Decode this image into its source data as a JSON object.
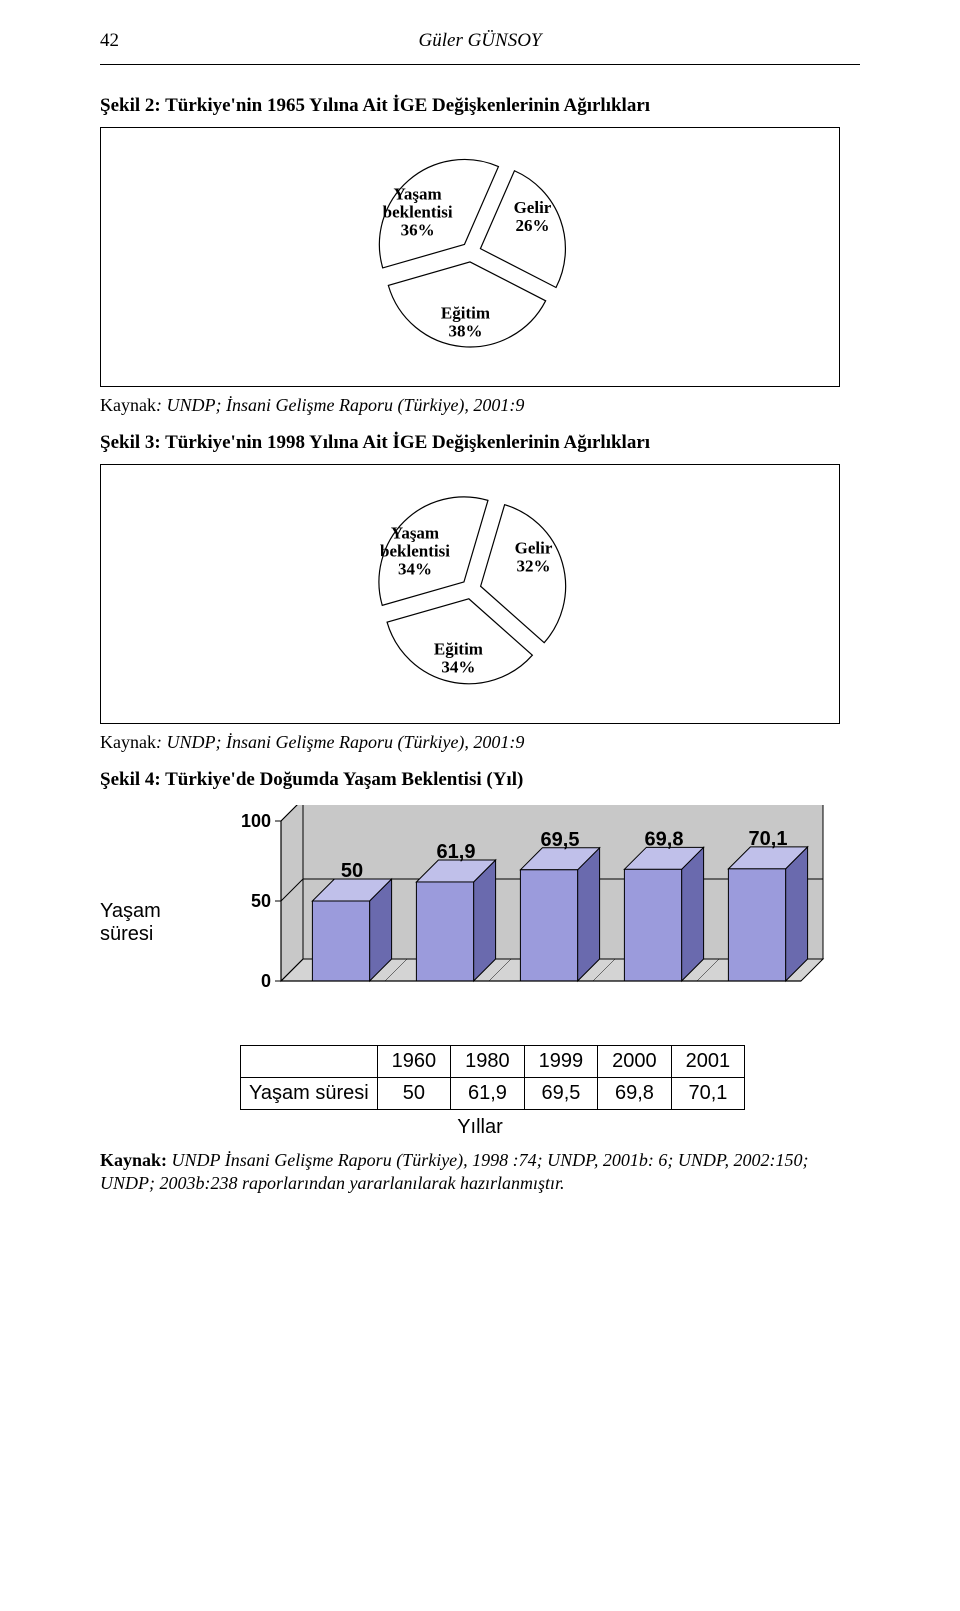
{
  "page_number": "42",
  "author": "Güler GÜNSOY",
  "figure2": {
    "title": "Şekil 2: Türkiye'nin 1965 Yılına Ait İGE Değişkenlerinin Ağırlıkları",
    "pie": {
      "slices": [
        {
          "label": "Yaşam",
          "sublabel": "beklentisi",
          "pct_text": "36%",
          "value": 36,
          "color": "#ffffff"
        },
        {
          "label": "Gelir",
          "sublabel": "",
          "pct_text": "26%",
          "value": 26,
          "color": "#ffffff"
        },
        {
          "label": "Eğitim",
          "sublabel": "",
          "pct_text": "38%",
          "value": 38,
          "color": "#ffffff"
        }
      ],
      "stroke": "#000000",
      "explode": 10,
      "radius": 85,
      "label_fontsize": 17
    },
    "source_label": "Kaynak",
    "source_text": ": UNDP;  İnsani Gelişme Raporu (Türkiye), 2001:9"
  },
  "figure3": {
    "title": "Şekil 3: Türkiye'nin 1998 Yılına Ait İGE Değişkenlerinin Ağırlıkları",
    "pie": {
      "slices": [
        {
          "label": "Yaşam",
          "sublabel": "beklentisi",
          "pct_text": "34%",
          "value": 34,
          "color": "#ffffff"
        },
        {
          "label": "Gelir",
          "sublabel": "",
          "pct_text": "32%",
          "value": 32,
          "color": "#ffffff"
        },
        {
          "label": "Eğitim",
          "sublabel": "",
          "pct_text": "34%",
          "value": 34,
          "color": "#ffffff"
        }
      ],
      "stroke": "#000000",
      "explode": 10,
      "radius": 85,
      "label_fontsize": 17
    },
    "source_label": "Kaynak",
    "source_text": ": UNDP;  İnsani Gelişme Raporu (Türkiye), 2001:9"
  },
  "figure4": {
    "title": "Şekil 4: Türkiye'de Doğumda Yaşam Beklentisi (Yıl)",
    "bar": {
      "type": "bar",
      "ylabel_line1": "Yaşam",
      "ylabel_line2": "süresi",
      "xlabel": "Yıllar",
      "row_header": "Yaşam süresi",
      "categories": [
        "1960",
        "1980",
        "1999",
        "2000",
        "2001"
      ],
      "values": [
        50,
        61.9,
        69.5,
        69.8,
        70.1
      ],
      "value_labels": [
        "50",
        "61,9",
        "69,5",
        "69,8",
        "70,1"
      ],
      "cat_row_labels": [
        "1960",
        "1980",
        "1999",
        "2000",
        "2001"
      ],
      "val_row_labels": [
        "50",
        "61,9",
        "69,5",
        "69,8",
        "70,1"
      ],
      "ylim": [
        0,
        100
      ],
      "yticks": [
        0,
        50,
        100
      ],
      "ytick_labels": [
        "0",
        "50",
        "100"
      ],
      "bar_fill": "#9b9bdc",
      "bar_stroke": "#000000",
      "bar_side_fill": "#6a6aae",
      "bar_top_fill": "#c0c0ea",
      "floor_fill": "#d4d4d4",
      "back_wall_fill": "#c8c8c8",
      "frame_stroke": "#000000",
      "grid_color": "#000000",
      "label_fontsize": 18,
      "axis_fontsize": 20,
      "bar_width_ratio": 0.55,
      "depth": 22
    },
    "footer_label": "Kaynak:",
    "footer_text": " UNDP İnsani Gelişme Raporu (Türkiye), 1998 :74; UNDP, 2001b: 6; UNDP, 2002:150; UNDP; 2003b:238 raporlarından yararlanılarak hazırlanmıştır."
  }
}
